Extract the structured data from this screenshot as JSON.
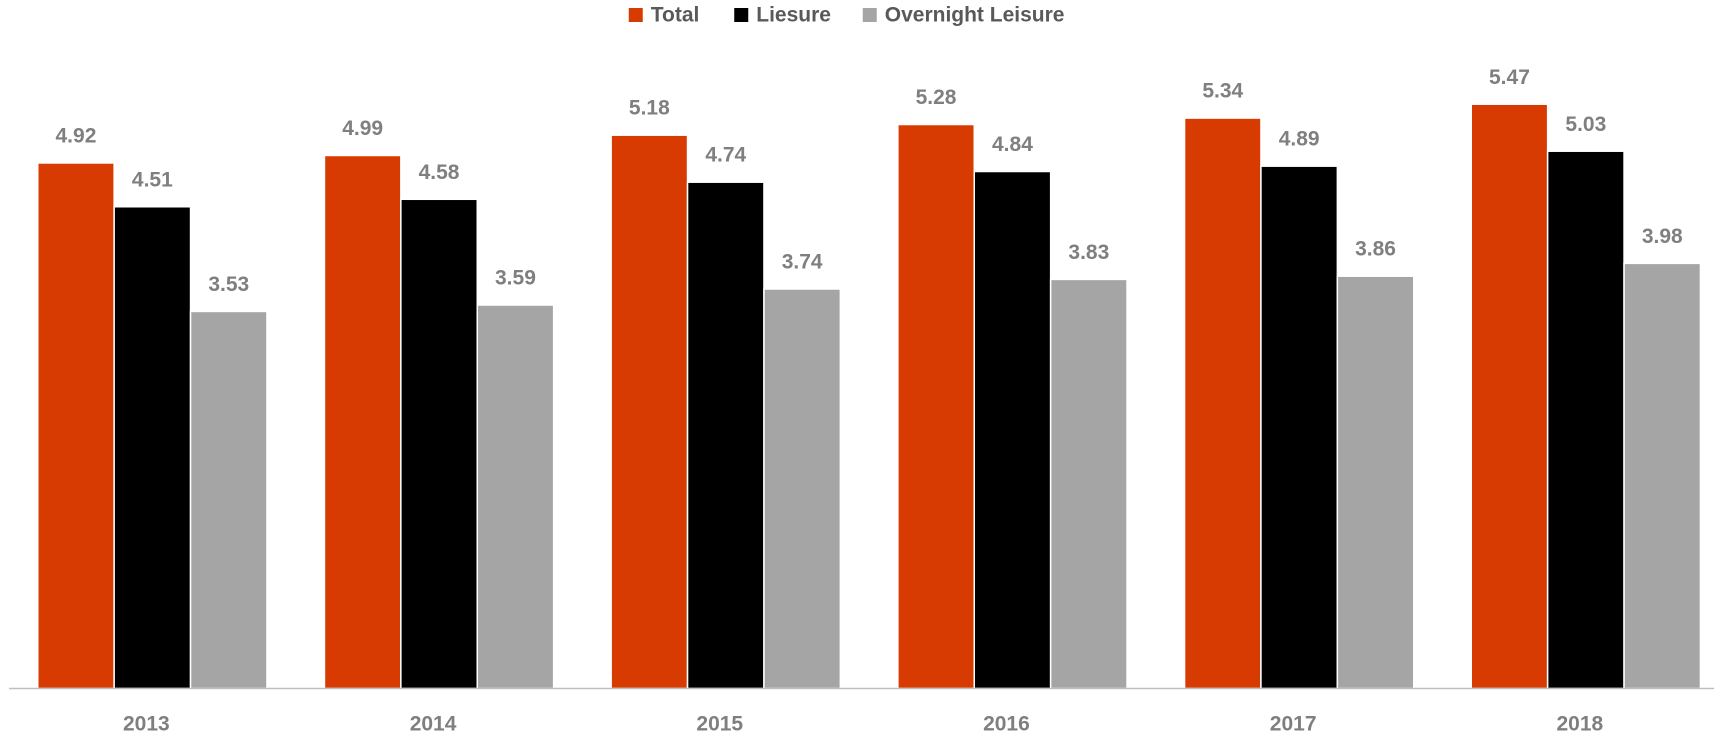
{
  "chart_data": {
    "type": "bar",
    "categories": [
      "2013",
      "2014",
      "2015",
      "2016",
      "2017",
      "2018"
    ],
    "series": [
      {
        "name": "Total",
        "color": "#d83b01",
        "values": [
          4.92,
          4.99,
          5.18,
          5.28,
          5.34,
          5.47
        ]
      },
      {
        "name": "Liesure",
        "color": "#000000",
        "values": [
          4.51,
          4.58,
          4.74,
          4.84,
          4.89,
          5.03
        ]
      },
      {
        "name": "Overnight Leisure",
        "color": "#a5a5a5",
        "values": [
          3.53,
          3.59,
          3.74,
          3.83,
          3.86,
          3.98
        ]
      }
    ],
    "ylim": [
      0,
      6
    ],
    "legend": "top"
  }
}
